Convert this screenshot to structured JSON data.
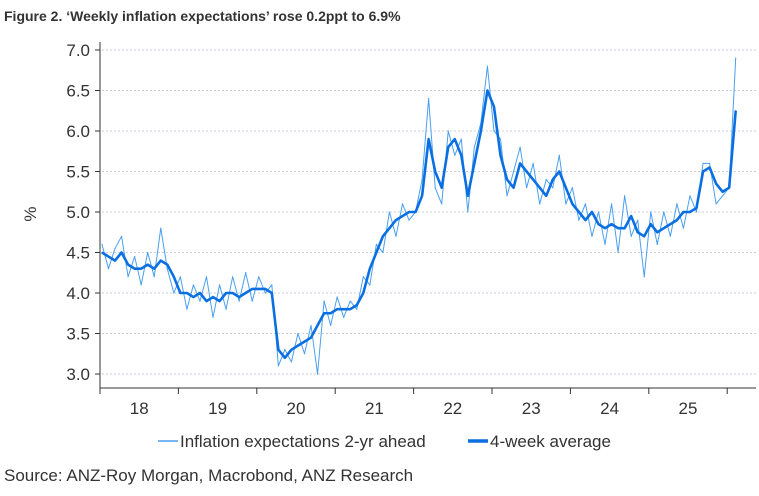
{
  "title": "Figure 2. ‘Weekly inflation expectations’ rose 0.2ppt to 6.9%",
  "source": "Source: ANZ-Roy Morgan, Macrobond, ANZ Research",
  "colors": {
    "raw": "#4a9ff0",
    "avg": "#0a6fe0",
    "grid": "#c8d0d8"
  },
  "chart_data": {
    "type": "line",
    "title": "Figure 2. ‘Weekly inflation expectations’ rose 0.2ppt to 6.9%",
    "xlabel": "",
    "ylabel": "%",
    "ylim": [
      3.0,
      7.0
    ],
    "yticks": [
      "3.0",
      "3.5",
      "4.0",
      "4.5",
      "5.0",
      "5.5",
      "6.0",
      "6.5",
      "7.0"
    ],
    "xlim": [
      2018.0,
      2026.37
    ],
    "xtick_labels": [
      "18",
      "19",
      "20",
      "21",
      "22",
      "23",
      "24",
      "25"
    ],
    "grid": true,
    "legend_position": "bottom",
    "x_start": 2018.0,
    "x_step_months": 1,
    "series": [
      {
        "name": "Inflation expectations 2-yr ahead",
        "values": [
          4.6,
          4.3,
          4.55,
          4.7,
          4.2,
          4.45,
          4.1,
          4.5,
          4.2,
          4.8,
          4.3,
          4.0,
          4.2,
          3.8,
          4.1,
          3.9,
          4.2,
          3.7,
          4.1,
          3.8,
          4.2,
          3.9,
          4.25,
          3.9,
          4.2,
          4.0,
          4.1,
          3.1,
          3.3,
          3.15,
          3.5,
          3.25,
          3.6,
          3.0,
          3.9,
          3.6,
          3.95,
          3.7,
          3.9,
          3.8,
          4.2,
          4.1,
          4.6,
          4.5,
          5.0,
          4.7,
          5.1,
          4.9,
          5.0,
          5.4,
          6.4,
          5.3,
          5.1,
          6.0,
          5.7,
          5.9,
          5.0,
          5.8,
          6.1,
          6.8,
          6.0,
          5.9,
          5.2,
          5.5,
          5.8,
          5.3,
          5.6,
          5.1,
          5.4,
          5.3,
          5.7,
          5.1,
          5.3,
          4.9,
          5.1,
          4.7,
          5.0,
          4.6,
          5.1,
          4.5,
          5.2,
          4.7,
          4.9,
          4.2,
          5.0,
          4.6,
          5.0,
          4.7,
          5.1,
          4.8,
          5.2,
          5.0,
          5.6,
          5.6,
          5.1,
          5.2,
          5.3,
          6.9
        ]
      },
      {
        "name": "4-week average",
        "values": [
          4.5,
          4.45,
          4.4,
          4.5,
          4.35,
          4.3,
          4.3,
          4.35,
          4.3,
          4.4,
          4.35,
          4.2,
          4.0,
          4.0,
          3.95,
          4.0,
          3.9,
          3.95,
          3.9,
          4.0,
          4.0,
          3.95,
          4.0,
          4.05,
          4.05,
          4.05,
          4.0,
          3.3,
          3.2,
          3.3,
          3.35,
          3.4,
          3.45,
          3.6,
          3.75,
          3.75,
          3.8,
          3.8,
          3.8,
          3.85,
          4.0,
          4.3,
          4.5,
          4.7,
          4.8,
          4.9,
          4.95,
          5.0,
          5.0,
          5.2,
          5.9,
          5.5,
          5.3,
          5.8,
          5.9,
          5.7,
          5.2,
          5.6,
          6.0,
          6.5,
          6.3,
          5.7,
          5.4,
          5.3,
          5.6,
          5.5,
          5.4,
          5.3,
          5.2,
          5.4,
          5.5,
          5.3,
          5.1,
          5.0,
          4.9,
          5.0,
          4.85,
          4.8,
          4.85,
          4.8,
          4.8,
          4.95,
          4.75,
          4.7,
          4.85,
          4.75,
          4.8,
          4.85,
          4.9,
          5.0,
          5.0,
          5.05,
          5.5,
          5.55,
          5.35,
          5.25,
          5.3,
          6.25
        ]
      }
    ]
  }
}
